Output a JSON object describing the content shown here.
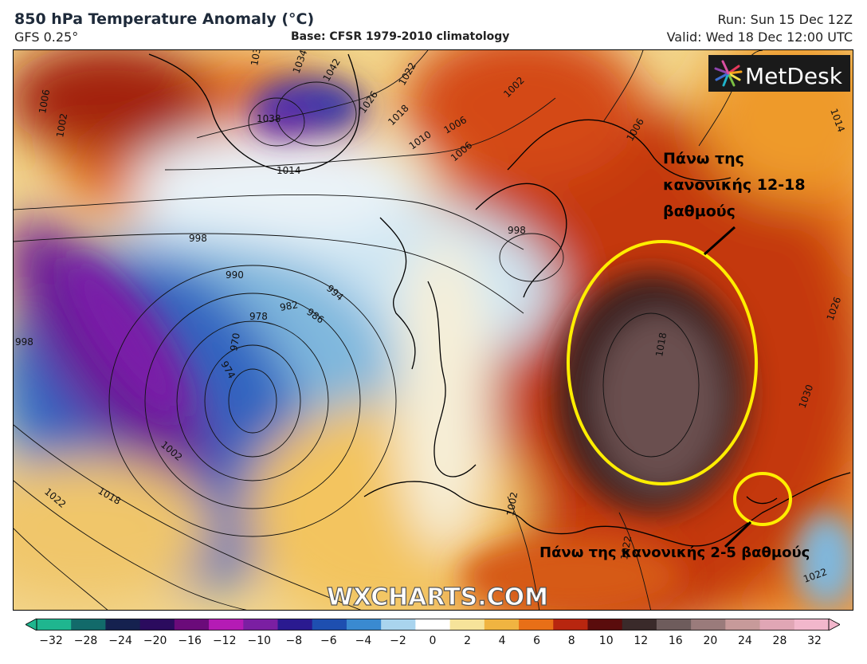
{
  "header": {
    "title": "850 hPa Temperature Anomaly (°C)",
    "model": "GFS 0.25°",
    "base": "Base: CFSR 1979-2010 climatology",
    "run": "Run: Sun 15 Dec 12Z",
    "valid": "Valid: Wed 18 Dec 12:00 UTC"
  },
  "brand": {
    "logo_text": "MetDesk",
    "watermark": "WXCHARTS.COM"
  },
  "annotations": {
    "top_right": [
      "Πάνω της",
      "κανονικής 12-18",
      "βαθμούς"
    ],
    "bottom": "Πάνω της κανονικής 2-5 βαθμούς",
    "highlight_color": "#ffee00"
  },
  "isobars": {
    "labels": [
      "1030",
      "1034",
      "1042",
      "1038",
      "1022",
      "1026",
      "1018",
      "1010",
      "1006",
      "1002",
      "1014",
      "998",
      "994",
      "990",
      "982",
      "986",
      "978",
      "974",
      "970",
      "1002",
      "1018",
      "1022",
      "998",
      "1006",
      "1014",
      "1026",
      "1030",
      "1018",
      "1006",
      "1022",
      "1022",
      "998",
      "1006",
      "1002",
      "1002"
    ]
  },
  "colorbar": {
    "ticks": [
      "−32",
      "−28",
      "−24",
      "−20",
      "−16",
      "−12",
      "−10",
      "−8",
      "−6",
      "−4",
      "−2",
      "0",
      "2",
      "4",
      "6",
      "8",
      "10",
      "12",
      "16",
      "20",
      "24",
      "28",
      "32"
    ],
    "colors": [
      "#1fb68f",
      "#126a6a",
      "#15214f",
      "#2b0b5e",
      "#6b0b7a",
      "#b51bb5",
      "#7b1fa2",
      "#2a1a90",
      "#1e4fb0",
      "#3a8ad0",
      "#a9d4ee",
      "#ffffff",
      "#f6e39a",
      "#f0b441",
      "#e86f17",
      "#b8260f",
      "#5a0c0c",
      "#3a2a2a",
      "#6e5c5c",
      "#9a7b7b",
      "#c79a9a",
      "#e0a6b5",
      "#f2b7cc"
    ]
  }
}
